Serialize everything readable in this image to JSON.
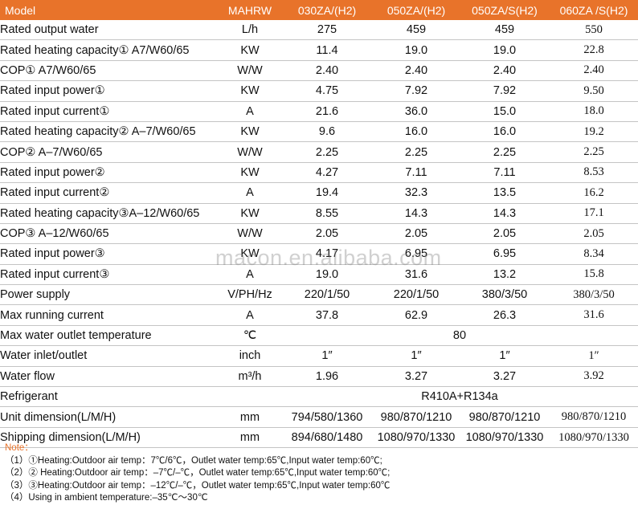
{
  "header": {
    "model": "Model",
    "unit": "MAHRW",
    "models": [
      "030ZA/(H2)",
      "050ZA/(H2)",
      "050ZA/S(H2)",
      "060ZA /S(H2)"
    ]
  },
  "rows": [
    {
      "param": "Rated output water",
      "unit": "L/h",
      "values": [
        "275",
        "459",
        "459",
        "550"
      ]
    },
    {
      "param": "Rated heating capacity① A7/W60/65",
      "unit": "KW",
      "values": [
        "11.4",
        "19.0",
        "19.0",
        "22.8"
      ]
    },
    {
      "param": "COP①  A7/W60/65",
      "unit": "W/W",
      "values": [
        "2.40",
        "2.40",
        "2.40",
        "2.40"
      ]
    },
    {
      "param": "Rated input power①",
      "unit": "KW",
      "values": [
        "4.75",
        "7.92",
        "7.92",
        "9.50"
      ]
    },
    {
      "param": "Rated input current①",
      "unit": "A",
      "values": [
        "21.6",
        "36.0",
        "15.0",
        "18.0"
      ]
    },
    {
      "param": "Rated heating capacity② A–7/W60/65",
      "unit": "KW",
      "values": [
        "9.6",
        "16.0",
        "16.0",
        "19.2"
      ]
    },
    {
      "param": "COP② A–7/W60/65",
      "unit": "W/W",
      "values": [
        "2.25",
        "2.25",
        "2.25",
        "2.25"
      ]
    },
    {
      "param": "Rated input power②",
      "unit": "KW",
      "values": [
        "4.27",
        "7.11",
        "7.11",
        "8.53"
      ]
    },
    {
      "param": "Rated input current②",
      "unit": "A",
      "values": [
        "19.4",
        "32.3",
        "13.5",
        "16.2"
      ]
    },
    {
      "param": "Rated heating capacity③A–12/W60/65",
      "unit": "KW",
      "values": [
        "8.55",
        "14.3",
        "14.3",
        "17.1"
      ]
    },
    {
      "param": "COP③  A–12/W60/65",
      "unit": "W/W",
      "values": [
        "2.05",
        "2.05",
        "2.05",
        "2.05"
      ]
    },
    {
      "param": "Rated input power③",
      "unit": "KW",
      "values": [
        "4.17",
        "6.95",
        "6.95",
        "8.34"
      ]
    },
    {
      "param": "Rated input current③",
      "unit": "A",
      "values": [
        "19.0",
        "31.6",
        "13.2",
        "15.8"
      ]
    },
    {
      "param": "Power supply",
      "unit": "V/PH/Hz",
      "values": [
        "220/1/50",
        "220/1/50",
        "380/3/50",
        "380/3/50"
      ]
    },
    {
      "param": "Max running current",
      "unit": "A",
      "values": [
        "37.8",
        "62.9",
        "26.3",
        "31.6"
      ]
    },
    {
      "param": "Max water outlet temperature",
      "unit": "℃",
      "merged": "80"
    },
    {
      "param": "Water inlet/outlet",
      "unit": "inch",
      "values": [
        "1″",
        "1″",
        "1″",
        "1″"
      ]
    },
    {
      "param": "Water flow",
      "unit": "m³/h",
      "values": [
        "1.96",
        "3.27",
        "3.27",
        "3.92"
      ]
    },
    {
      "param": "Refrigerant",
      "unit": "",
      "merged": "R410A+R134a"
    },
    {
      "param": "Unit dimension(L/M/H)",
      "unit": "mm",
      "values": [
        "794/580/1360",
        "980/870/1210",
        "980/870/1210",
        "980/870/1210"
      ]
    },
    {
      "param": "Shipping dimension(L/M/H)",
      "unit": "mm",
      "values": [
        "894/680/1480",
        "1080/970/1330",
        "1080/970/1330",
        "1080/970/1330"
      ]
    }
  ],
  "notes": {
    "title": "Note：",
    "lines": [
      "（1）①Heating:Outdoor air temp：7℃/6℃，Outlet water temp:65℃,Input water temp:60℃;",
      "（2）②  Heating:Outdoor air temp：–7℃/–℃，Outlet water temp:65℃,Input water temp:60℃;",
      "（3）③Heating:Outdoor air temp：–12℃/–℃，Outlet water temp:65℃,Input water temp:60℃",
      "（4）Using in ambient temperature:–35℃～30℃"
    ]
  },
  "watermark": "macon.en.alibaba.com",
  "colors": {
    "header_bg": "#e8732a",
    "highlight_text": "#e0701e"
  }
}
